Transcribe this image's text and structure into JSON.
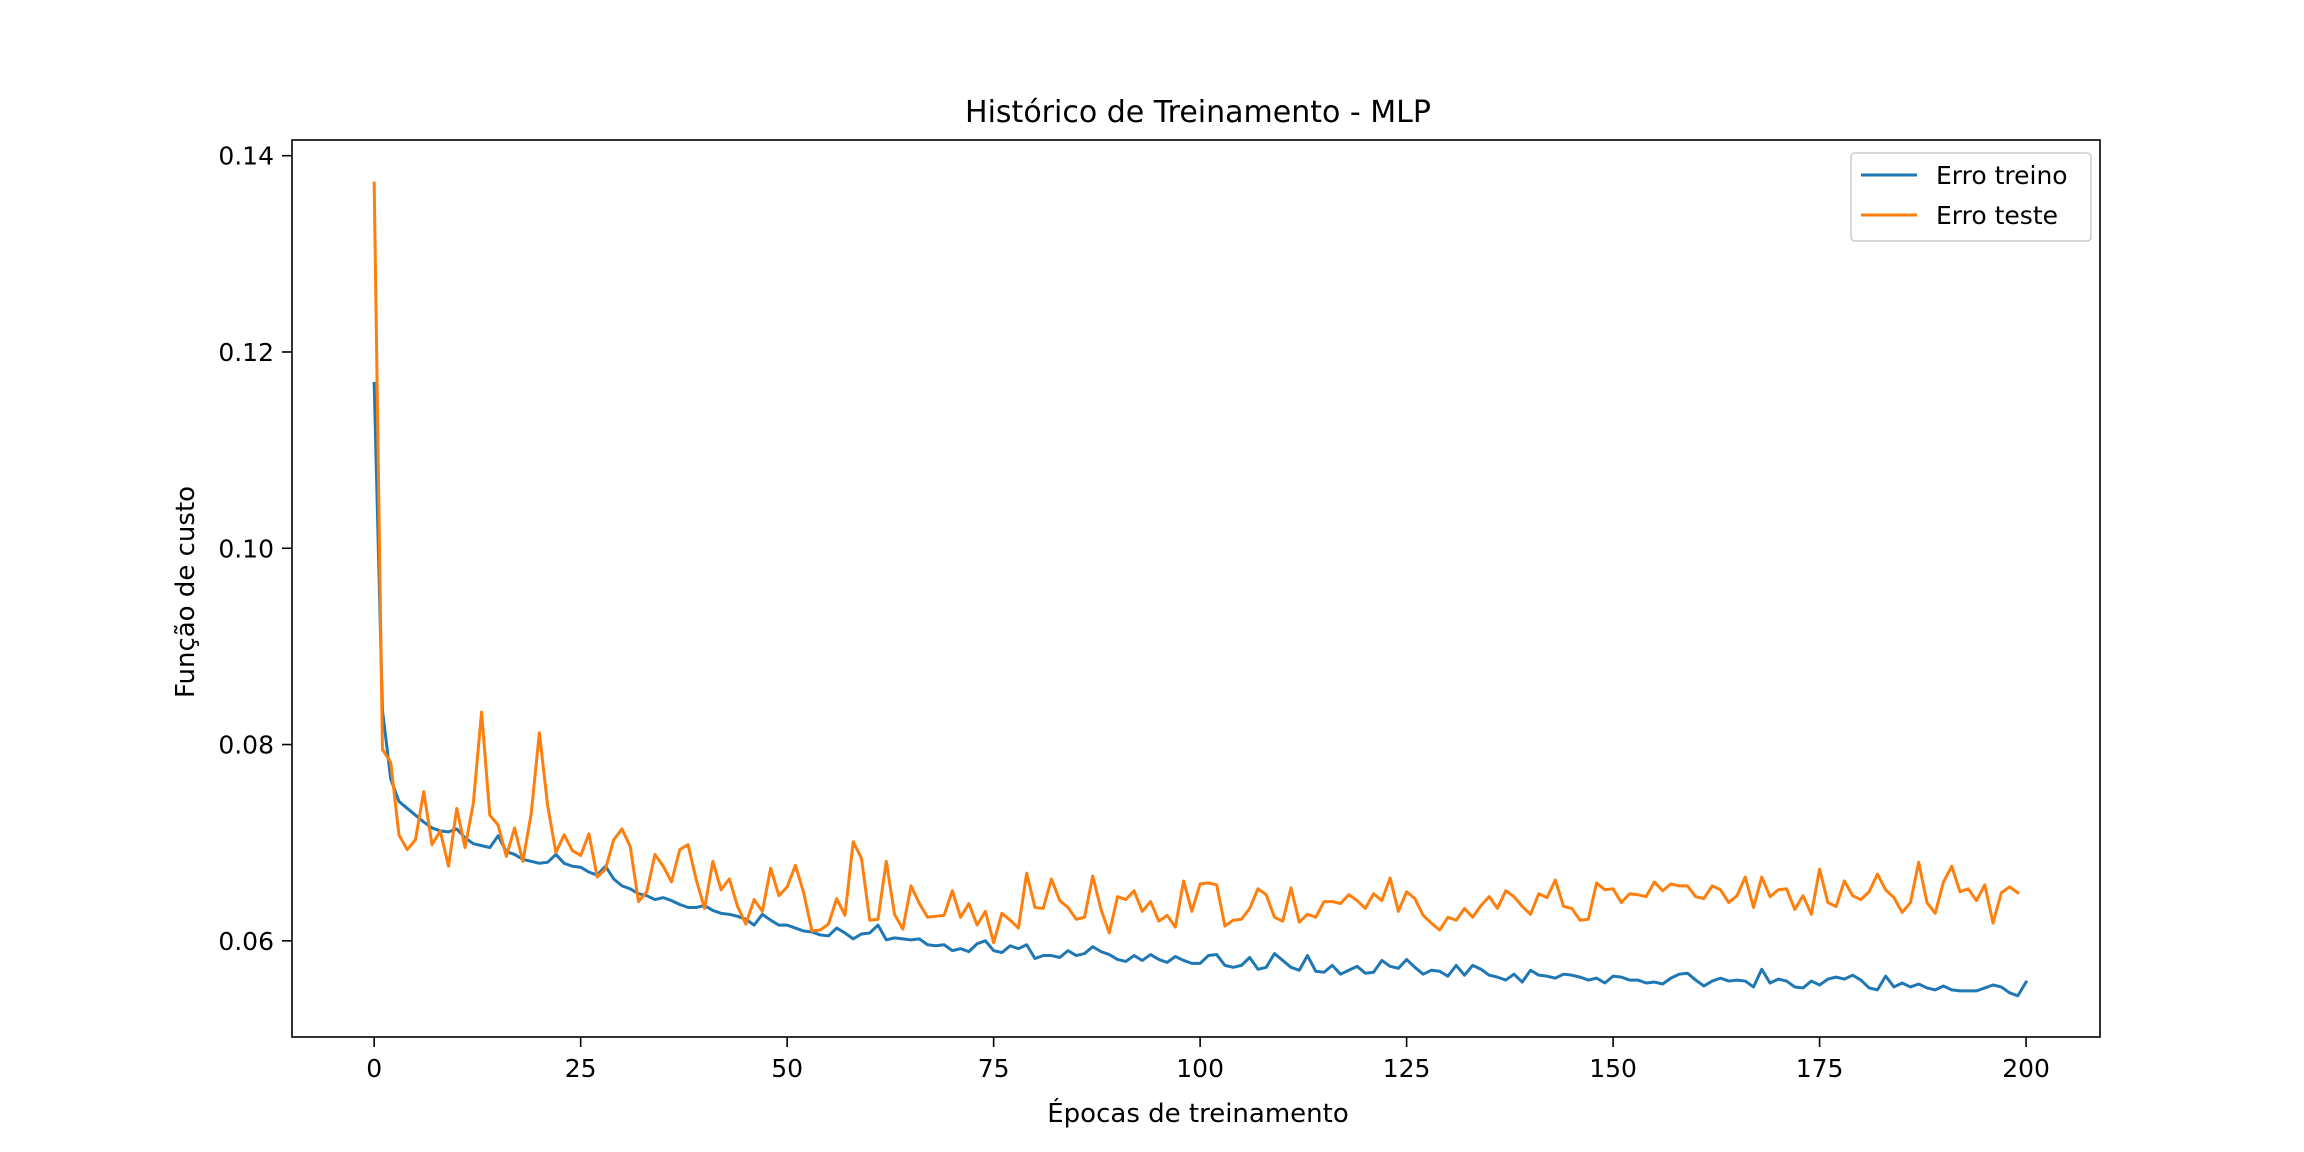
{
  "chart_data": {
    "type": "line",
    "title": "Histórico de Treinamento - MLP",
    "xlabel": "Épocas de treinamento",
    "ylabel": "Função de custo",
    "xlim": [
      -9.95,
      208.95
    ],
    "ylim": [
      0.0502,
      0.1416
    ],
    "xticks": [
      0,
      25,
      50,
      75,
      100,
      125,
      150,
      175,
      200
    ],
    "yticks": [
      0.06,
      0.08,
      0.1,
      0.12,
      0.14
    ],
    "xtick_labels": [
      "0",
      "25",
      "50",
      "75",
      "100",
      "125",
      "150",
      "175",
      "200"
    ],
    "ytick_labels": [
      "0.06",
      "0.08",
      "0.10",
      "0.12",
      "0.14"
    ],
    "grid": false,
    "legend_position": "top-right",
    "series": [
      {
        "name": "Erro treino",
        "color": "#1f77b4",
        "values": [
          0.1168,
          0.0835,
          0.0765,
          0.0742,
          0.0735,
          0.0728,
          0.0721,
          0.0715,
          0.0712,
          0.0711,
          0.0714,
          0.0705,
          0.0699,
          0.0697,
          0.0695,
          0.0707,
          0.0691,
          0.0688,
          0.0683,
          0.0681,
          0.0679,
          0.068,
          0.0688,
          0.0679,
          0.0676,
          0.0675,
          0.067,
          0.0667,
          0.0676,
          0.0663,
          0.0656,
          0.0653,
          0.0648,
          0.0646,
          0.0642,
          0.0644,
          0.0641,
          0.0637,
          0.0634,
          0.0634,
          0.0636,
          0.0631,
          0.0628,
          0.0627,
          0.0625,
          0.0622,
          0.0616,
          0.0627,
          0.0621,
          0.0616,
          0.0616,
          0.0613,
          0.061,
          0.0609,
          0.0606,
          0.0605,
          0.0613,
          0.0608,
          0.0602,
          0.0607,
          0.0608,
          0.0616,
          0.0601,
          0.0603,
          0.0602,
          0.0601,
          0.0602,
          0.0596,
          0.0595,
          0.0596,
          0.059,
          0.0592,
          0.0589,
          0.0597,
          0.06,
          0.059,
          0.0588,
          0.0595,
          0.0592,
          0.0596,
          0.0582,
          0.0585,
          0.0585,
          0.0583,
          0.059,
          0.0585,
          0.0587,
          0.0594,
          0.0589,
          0.0586,
          0.0581,
          0.0579,
          0.0585,
          0.058,
          0.0586,
          0.0581,
          0.0578,
          0.0584,
          0.058,
          0.0577,
          0.0577,
          0.0585,
          0.0586,
          0.0575,
          0.0573,
          0.0575,
          0.0583,
          0.0571,
          0.0573,
          0.0587,
          0.058,
          0.0573,
          0.057,
          0.0585,
          0.0569,
          0.0568,
          0.0575,
          0.0566,
          0.057,
          0.0574,
          0.0567,
          0.0568,
          0.058,
          0.0574,
          0.0572,
          0.0581,
          0.0573,
          0.0566,
          0.057,
          0.0569,
          0.0564,
          0.0575,
          0.0565,
          0.0575,
          0.0571,
          0.0565,
          0.0563,
          0.056,
          0.0566,
          0.0558,
          0.057,
          0.0565,
          0.0564,
          0.0562,
          0.0566,
          0.0565,
          0.0563,
          0.056,
          0.0562,
          0.0557,
          0.0564,
          0.0563,
          0.056,
          0.056,
          0.0557,
          0.0558,
          0.0556,
          0.0562,
          0.0566,
          0.0567,
          0.056,
          0.0554,
          0.0559,
          0.0562,
          0.0559,
          0.056,
          0.0559,
          0.0553,
          0.0571,
          0.0557,
          0.0561,
          0.0559,
          0.0553,
          0.0552,
          0.0559,
          0.0555,
          0.0561,
          0.0563,
          0.0561,
          0.0565,
          0.056,
          0.0552,
          0.055,
          0.0564,
          0.0553,
          0.0557,
          0.0553,
          0.0556,
          0.0552,
          0.055,
          0.0554,
          0.055,
          0.0549,
          0.0549,
          0.0549,
          0.0552,
          0.0555,
          0.0553,
          0.0547,
          0.0544,
          0.0558
        ]
      },
      {
        "name": "Erro teste",
        "color": "#ff7f0e",
        "values": [
          0.1372,
          0.0795,
          0.0782,
          0.0708,
          0.0693,
          0.0703,
          0.0752,
          0.0698,
          0.0712,
          0.0676,
          0.0735,
          0.0695,
          0.074,
          0.0833,
          0.0728,
          0.0718,
          0.0686,
          0.0715,
          0.0681,
          0.0729,
          0.0812,
          0.0738,
          0.069,
          0.0708,
          0.0692,
          0.0687,
          0.0709,
          0.0665,
          0.0673,
          0.0703,
          0.0714,
          0.0696,
          0.064,
          0.065,
          0.0688,
          0.0676,
          0.066,
          0.0693,
          0.0698,
          0.0662,
          0.0633,
          0.0681,
          0.0652,
          0.0663,
          0.0635,
          0.0617,
          0.0642,
          0.063,
          0.0674,
          0.0646,
          0.0655,
          0.0677,
          0.0649,
          0.061,
          0.0611,
          0.0617,
          0.0643,
          0.0626,
          0.0701,
          0.0684,
          0.0621,
          0.0622,
          0.0681,
          0.0627,
          0.0612,
          0.0656,
          0.0638,
          0.0624,
          0.0625,
          0.0626,
          0.0651,
          0.0624,
          0.0638,
          0.0616,
          0.063,
          0.0598,
          0.0628,
          0.0621,
          0.0613,
          0.0669,
          0.0634,
          0.0633,
          0.0663,
          0.0641,
          0.0634,
          0.0622,
          0.0624,
          0.0666,
          0.0632,
          0.0608,
          0.0645,
          0.0642,
          0.0651,
          0.063,
          0.064,
          0.062,
          0.0626,
          0.0614,
          0.0661,
          0.063,
          0.0658,
          0.0659,
          0.0657,
          0.0615,
          0.0621,
          0.0622,
          0.0633,
          0.0653,
          0.0647,
          0.0624,
          0.062,
          0.0654,
          0.0619,
          0.0627,
          0.0624,
          0.064,
          0.064,
          0.0638,
          0.0647,
          0.0641,
          0.0633,
          0.0648,
          0.0641,
          0.0664,
          0.063,
          0.065,
          0.0643,
          0.0626,
          0.0618,
          0.0611,
          0.0624,
          0.0621,
          0.0633,
          0.0624,
          0.0636,
          0.0645,
          0.0633,
          0.0651,
          0.0645,
          0.0635,
          0.0627,
          0.0648,
          0.0644,
          0.0662,
          0.0635,
          0.0633,
          0.0621,
          0.0622,
          0.0659,
          0.0652,
          0.0653,
          0.0639,
          0.0648,
          0.0647,
          0.0645,
          0.066,
          0.0651,
          0.0658,
          0.0656,
          0.0656,
          0.0645,
          0.0643,
          0.0656,
          0.0652,
          0.0639,
          0.0646,
          0.0665,
          0.0634,
          0.0665,
          0.0645,
          0.0652,
          0.0653,
          0.0632,
          0.0646,
          0.0627,
          0.0673,
          0.0639,
          0.0635,
          0.0661,
          0.0646,
          0.0642,
          0.065,
          0.0668,
          0.0652,
          0.0644,
          0.0629,
          0.0639,
          0.068,
          0.0639,
          0.0628,
          0.066,
          0.0676,
          0.065,
          0.0653,
          0.0641,
          0.0657,
          0.0618,
          0.0649,
          0.0655,
          0.0649
        ]
      }
    ]
  }
}
